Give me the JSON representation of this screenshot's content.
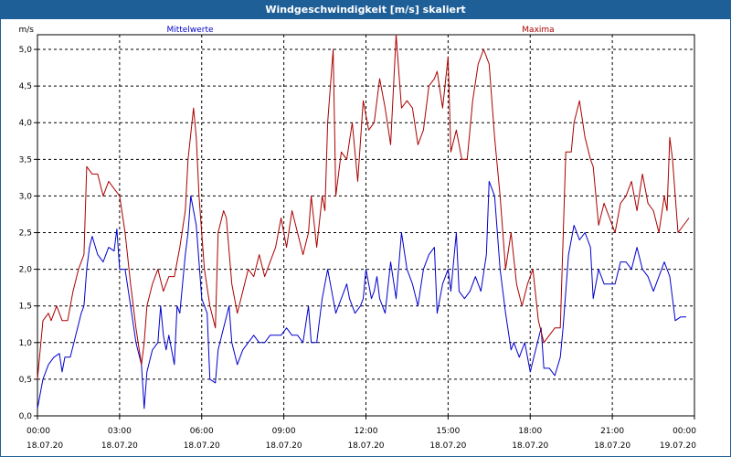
{
  "window": {
    "title": "Windgeschwindigkeit [m/s] skaliert"
  },
  "colors": {
    "titlebar": "#1f5f98",
    "mean": "#0000cc",
    "max": "#aa0000",
    "grid": "#000000"
  },
  "chart_data": {
    "type": "line",
    "title": "Windgeschwindigkeit [m/s] skaliert",
    "ylabel": "m/s",
    "xlabel": "",
    "ylim": [
      0,
      5.2
    ],
    "yticks": [
      0.0,
      0.5,
      1.0,
      1.5,
      2.0,
      2.5,
      3.0,
      3.5,
      4.0,
      4.5,
      5.0
    ],
    "ytick_labels": [
      "0,0",
      "0,5",
      "1,0",
      "1,5",
      "2,0",
      "2,5",
      "3,0",
      "3,5",
      "4,0",
      "4,5",
      "5,0"
    ],
    "xlim": [
      0,
      24
    ],
    "xticks": [
      0,
      3,
      6,
      9,
      12,
      15,
      18,
      21,
      24
    ],
    "xtick_labels": [
      {
        "time": "00:00",
        "date": "18.07.20"
      },
      {
        "time": "03:00",
        "date": "18.07.20"
      },
      {
        "time": "06:00",
        "date": "18.07.20"
      },
      {
        "time": "09:00",
        "date": "18.07.20"
      },
      {
        "time": "12:00",
        "date": "18.07.20"
      },
      {
        "time": "15:00",
        "date": "18.07.20"
      },
      {
        "time": "18:00",
        "date": "18.07.20"
      },
      {
        "time": "21:00",
        "date": "18.07.20"
      },
      {
        "time": "00:00",
        "date": "19.07.20"
      }
    ],
    "grid": true,
    "series": [
      {
        "name": "Mittelwerte",
        "legend_position": "top-left",
        "color": "#0000cc",
        "points": [
          [
            0,
            0.1
          ],
          [
            0.2,
            0.5
          ],
          [
            0.4,
            0.7
          ],
          [
            0.6,
            0.8
          ],
          [
            0.8,
            0.85
          ],
          [
            0.9,
            0.6
          ],
          [
            1.0,
            0.8
          ],
          [
            1.2,
            0.8
          ],
          [
            1.4,
            1.1
          ],
          [
            1.6,
            1.4
          ],
          [
            1.7,
            1.5
          ],
          [
            1.8,
            2.0
          ],
          [
            1.9,
            2.3
          ],
          [
            2.0,
            2.45
          ],
          [
            2.2,
            2.2
          ],
          [
            2.4,
            2.1
          ],
          [
            2.6,
            2.3
          ],
          [
            2.8,
            2.25
          ],
          [
            2.9,
            2.55
          ],
          [
            3.0,
            2.0
          ],
          [
            3.2,
            2.0
          ],
          [
            3.4,
            1.5
          ],
          [
            3.6,
            1.0
          ],
          [
            3.8,
            0.7
          ],
          [
            3.9,
            0.1
          ],
          [
            4.0,
            0.6
          ],
          [
            4.2,
            0.9
          ],
          [
            4.4,
            1.0
          ],
          [
            4.5,
            1.5
          ],
          [
            4.6,
            1.1
          ],
          [
            4.7,
            0.9
          ],
          [
            4.8,
            1.1
          ],
          [
            5.0,
            0.7
          ],
          [
            5.1,
            1.5
          ],
          [
            5.2,
            1.4
          ],
          [
            5.4,
            2.2
          ],
          [
            5.5,
            2.5
          ],
          [
            5.6,
            3.0
          ],
          [
            5.8,
            2.6
          ],
          [
            6.0,
            1.6
          ],
          [
            6.2,
            1.4
          ],
          [
            6.3,
            0.5
          ],
          [
            6.5,
            0.45
          ],
          [
            6.6,
            0.9
          ],
          [
            6.8,
            1.2
          ],
          [
            7.0,
            1.5
          ],
          [
            7.1,
            1.0
          ],
          [
            7.3,
            0.7
          ],
          [
            7.5,
            0.9
          ],
          [
            7.7,
            1.0
          ],
          [
            7.9,
            1.1
          ],
          [
            8.1,
            1.0
          ],
          [
            8.3,
            1.0
          ],
          [
            8.5,
            1.1
          ],
          [
            8.7,
            1.1
          ],
          [
            8.9,
            1.1
          ],
          [
            9.1,
            1.2
          ],
          [
            9.3,
            1.1
          ],
          [
            9.5,
            1.1
          ],
          [
            9.7,
            1.0
          ],
          [
            9.9,
            1.5
          ],
          [
            10.0,
            1.0
          ],
          [
            10.2,
            1.0
          ],
          [
            10.4,
            1.6
          ],
          [
            10.6,
            2.0
          ],
          [
            10.7,
            1.8
          ],
          [
            10.9,
            1.4
          ],
          [
            11.1,
            1.6
          ],
          [
            11.3,
            1.8
          ],
          [
            11.4,
            1.6
          ],
          [
            11.6,
            1.4
          ],
          [
            11.8,
            1.5
          ],
          [
            11.9,
            1.6
          ],
          [
            12.0,
            2.0
          ],
          [
            12.2,
            1.6
          ],
          [
            12.3,
            1.7
          ],
          [
            12.4,
            1.9
          ],
          [
            12.5,
            1.6
          ],
          [
            12.7,
            1.4
          ],
          [
            12.9,
            2.1
          ],
          [
            13.1,
            1.6
          ],
          [
            13.3,
            2.5
          ],
          [
            13.5,
            2.0
          ],
          [
            13.7,
            1.8
          ],
          [
            13.9,
            1.5
          ],
          [
            14.1,
            2.0
          ],
          [
            14.3,
            2.2
          ],
          [
            14.5,
            2.3
          ],
          [
            14.6,
            1.4
          ],
          [
            14.8,
            1.8
          ],
          [
            15.0,
            2.0
          ],
          [
            15.1,
            1.7
          ],
          [
            15.3,
            2.5
          ],
          [
            15.4,
            1.7
          ],
          [
            15.6,
            1.6
          ],
          [
            15.8,
            1.7
          ],
          [
            16.0,
            1.9
          ],
          [
            16.2,
            1.7
          ],
          [
            16.4,
            2.2
          ],
          [
            16.5,
            3.2
          ],
          [
            16.7,
            3.0
          ],
          [
            16.9,
            2.0
          ],
          [
            17.1,
            1.4
          ],
          [
            17.3,
            0.9
          ],
          [
            17.4,
            1.0
          ],
          [
            17.6,
            0.8
          ],
          [
            17.8,
            1.0
          ],
          [
            18.0,
            0.6
          ],
          [
            18.2,
            0.9
          ],
          [
            18.4,
            1.2
          ],
          [
            18.5,
            0.65
          ],
          [
            18.7,
            0.65
          ],
          [
            18.9,
            0.55
          ],
          [
            19.1,
            0.8
          ],
          [
            19.2,
            1.2
          ],
          [
            19.4,
            2.2
          ],
          [
            19.6,
            2.6
          ],
          [
            19.8,
            2.4
          ],
          [
            20.0,
            2.5
          ],
          [
            20.2,
            2.3
          ],
          [
            20.3,
            1.6
          ],
          [
            20.5,
            2.0
          ],
          [
            20.7,
            1.8
          ],
          [
            20.9,
            1.8
          ],
          [
            21.1,
            1.8
          ],
          [
            21.3,
            2.1
          ],
          [
            21.5,
            2.1
          ],
          [
            21.7,
            2.0
          ],
          [
            21.9,
            2.3
          ],
          [
            22.1,
            2.0
          ],
          [
            22.3,
            1.9
          ],
          [
            22.5,
            1.7
          ],
          [
            22.7,
            1.9
          ],
          [
            22.9,
            2.1
          ],
          [
            23.1,
            1.9
          ],
          [
            23.3,
            1.3
          ],
          [
            23.5,
            1.35
          ],
          [
            23.7,
            1.35
          ]
        ]
      },
      {
        "name": "Maxima",
        "legend_position": "top-right",
        "color": "#aa0000",
        "points": [
          [
            0,
            0.5
          ],
          [
            0.2,
            1.3
          ],
          [
            0.4,
            1.4
          ],
          [
            0.5,
            1.3
          ],
          [
            0.7,
            1.5
          ],
          [
            0.9,
            1.3
          ],
          [
            1.1,
            1.3
          ],
          [
            1.3,
            1.7
          ],
          [
            1.5,
            2.0
          ],
          [
            1.7,
            2.2
          ],
          [
            1.8,
            3.4
          ],
          [
            2.0,
            3.3
          ],
          [
            2.2,
            3.3
          ],
          [
            2.4,
            3.0
          ],
          [
            2.6,
            3.2
          ],
          [
            2.8,
            3.1
          ],
          [
            3.0,
            3.0
          ],
          [
            3.2,
            2.5
          ],
          [
            3.4,
            1.8
          ],
          [
            3.6,
            1.2
          ],
          [
            3.8,
            0.7
          ],
          [
            3.9,
            1.0
          ],
          [
            4.0,
            1.5
          ],
          [
            4.2,
            1.8
          ],
          [
            4.4,
            2.0
          ],
          [
            4.6,
            1.7
          ],
          [
            4.8,
            1.9
          ],
          [
            5.0,
            1.9
          ],
          [
            5.2,
            2.3
          ],
          [
            5.4,
            2.8
          ],
          [
            5.5,
            3.5
          ],
          [
            5.7,
            4.2
          ],
          [
            5.8,
            3.8
          ],
          [
            5.9,
            3.0
          ],
          [
            6.1,
            2.0
          ],
          [
            6.3,
            1.5
          ],
          [
            6.5,
            1.2
          ],
          [
            6.6,
            2.5
          ],
          [
            6.8,
            2.8
          ],
          [
            6.9,
            2.7
          ],
          [
            7.1,
            1.8
          ],
          [
            7.3,
            1.4
          ],
          [
            7.5,
            1.7
          ],
          [
            7.7,
            2.0
          ],
          [
            7.9,
            1.9
          ],
          [
            8.1,
            2.2
          ],
          [
            8.3,
            1.9
          ],
          [
            8.5,
            2.1
          ],
          [
            8.7,
            2.3
          ],
          [
            8.9,
            2.7
          ],
          [
            9.1,
            2.3
          ],
          [
            9.3,
            2.8
          ],
          [
            9.5,
            2.5
          ],
          [
            9.7,
            2.2
          ],
          [
            9.9,
            2.5
          ],
          [
            10.0,
            3.0
          ],
          [
            10.2,
            2.3
          ],
          [
            10.4,
            3.0
          ],
          [
            10.5,
            2.8
          ],
          [
            10.6,
            4.0
          ],
          [
            10.8,
            5.0
          ],
          [
            10.9,
            3.0
          ],
          [
            11.1,
            3.6
          ],
          [
            11.3,
            3.5
          ],
          [
            11.5,
            4.0
          ],
          [
            11.7,
            3.2
          ],
          [
            11.9,
            4.3
          ],
          [
            12.1,
            3.9
          ],
          [
            12.3,
            4.0
          ],
          [
            12.5,
            4.6
          ],
          [
            12.7,
            4.2
          ],
          [
            12.9,
            3.7
          ],
          [
            13.1,
            5.2
          ],
          [
            13.3,
            4.2
          ],
          [
            13.5,
            4.3
          ],
          [
            13.7,
            4.2
          ],
          [
            13.9,
            3.7
          ],
          [
            14.1,
            3.9
          ],
          [
            14.3,
            4.5
          ],
          [
            14.5,
            4.6
          ],
          [
            14.6,
            4.7
          ],
          [
            14.8,
            4.2
          ],
          [
            15.0,
            4.9
          ],
          [
            15.1,
            3.6
          ],
          [
            15.3,
            3.9
          ],
          [
            15.5,
            3.5
          ],
          [
            15.7,
            3.5
          ],
          [
            15.9,
            4.3
          ],
          [
            16.1,
            4.8
          ],
          [
            16.3,
            5.0
          ],
          [
            16.5,
            4.8
          ],
          [
            16.7,
            3.8
          ],
          [
            16.9,
            3.0
          ],
          [
            17.1,
            2.0
          ],
          [
            17.3,
            2.5
          ],
          [
            17.5,
            1.8
          ],
          [
            17.7,
            1.5
          ],
          [
            17.9,
            1.8
          ],
          [
            18.1,
            2.0
          ],
          [
            18.3,
            1.3
          ],
          [
            18.5,
            1.0
          ],
          [
            18.7,
            1.1
          ],
          [
            18.9,
            1.2
          ],
          [
            19.1,
            1.2
          ],
          [
            19.3,
            3.6
          ],
          [
            19.5,
            3.6
          ],
          [
            19.6,
            4.0
          ],
          [
            19.8,
            4.3
          ],
          [
            20.0,
            3.8
          ],
          [
            20.2,
            3.5
          ],
          [
            20.3,
            3.4
          ],
          [
            20.5,
            2.6
          ],
          [
            20.7,
            2.9
          ],
          [
            20.9,
            2.7
          ],
          [
            21.1,
            2.5
          ],
          [
            21.3,
            2.9
          ],
          [
            21.5,
            3.0
          ],
          [
            21.7,
            3.2
          ],
          [
            21.9,
            2.8
          ],
          [
            22.1,
            3.3
          ],
          [
            22.3,
            2.9
          ],
          [
            22.5,
            2.8
          ],
          [
            22.7,
            2.5
          ],
          [
            22.9,
            3.0
          ],
          [
            23.0,
            2.8
          ],
          [
            23.1,
            3.8
          ],
          [
            23.2,
            3.5
          ],
          [
            23.4,
            2.5
          ],
          [
            23.6,
            2.6
          ],
          [
            23.8,
            2.7
          ]
        ]
      }
    ]
  }
}
